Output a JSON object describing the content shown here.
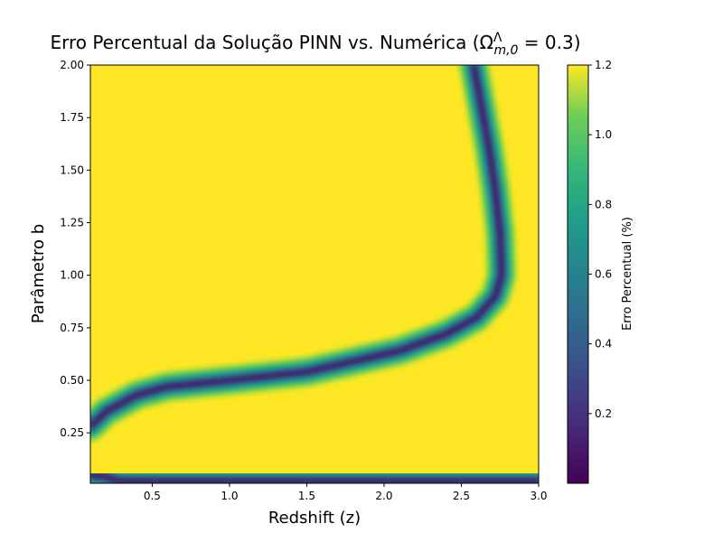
{
  "chart_data": {
    "type": "heatmap",
    "title": "Erro Percentual da Solução PINN vs. Numérica (Ω",
    "title_sup": "Λ",
    "title_sub": "m,0",
    "title_end": " = 0.3)",
    "xlabel": "Redshift (z)",
    "ylabel": "Parâmetro b",
    "colorbar_label": "Erro Percentual (%)",
    "colormap": "viridis",
    "background_color": "#fde725",
    "xlim": [
      0.1,
      3.0
    ],
    "ylim": [
      0.01,
      2.0
    ],
    "xticks": [
      0.5,
      {
        "value": 1,
        "label": "1.0"
      },
      1.5,
      {
        "value": 2,
        "label": "2.0"
      },
      2.5,
      {
        "value": 3,
        "label": "3.0"
      }
    ],
    "yticks": [
      0.25,
      {
        "value": 0.5,
        "label": "0.50"
      },
      0.75,
      {
        "value": 1,
        "label": "1.00"
      },
      1.25,
      {
        "value": 1.5,
        "label": "1.50"
      },
      1.75,
      {
        "value": 2,
        "label": "2.00"
      }
    ],
    "clim": [
      0,
      1.2
    ],
    "cticks": [
      0.2,
      0.4,
      0.6,
      0.8,
      {
        "value": 1,
        "label": "1.0"
      },
      1.2
    ],
    "min_curve": {
      "x": [
        0.1,
        0.2,
        0.4,
        0.6,
        1.0,
        1.5,
        1.8,
        2.1,
        2.4,
        2.6,
        2.72,
        2.76,
        2.75,
        2.72,
        2.68,
        2.63,
        2.58
      ],
      "y": [
        0.28,
        0.35,
        0.43,
        0.47,
        0.5,
        0.54,
        0.59,
        0.64,
        0.72,
        0.8,
        0.9,
        1.0,
        1.2,
        1.4,
        1.6,
        1.8,
        2.0
      ]
    },
    "edge_curve": {
      "x": [
        0.1,
        0.2,
        0.3,
        1.0,
        2.0,
        3.0
      ],
      "y": [
        0.05,
        0.04,
        0.02,
        0.02,
        0.02,
        0.02
      ]
    }
  }
}
